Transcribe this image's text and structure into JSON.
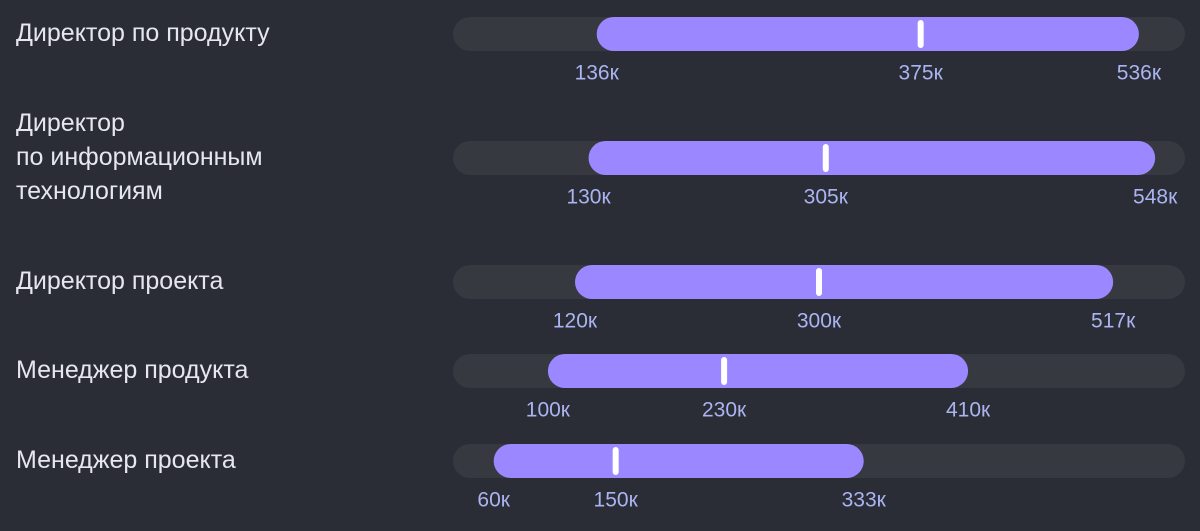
{
  "chart_data": {
    "type": "range",
    "categories": [
      [
        "Директор по продукту"
      ],
      [
        "Директор",
        "по информационным",
        "технологиям"
      ],
      [
        "Директор проекта"
      ],
      [
        "Менеджер продукта"
      ],
      [
        "Менеджер проекта"
      ]
    ],
    "low": {
      "values": [
        136,
        130,
        120,
        100,
        60
      ],
      "value_labels": [
        "136к",
        "130к",
        "120к",
        "100к",
        "60к"
      ]
    },
    "median": {
      "values": [
        375,
        305,
        300,
        230,
        150
      ],
      "value_labels": [
        "375к",
        "305к",
        "300к",
        "230к",
        "150к"
      ]
    },
    "high": {
      "values": [
        536,
        548,
        517,
        410,
        333
      ],
      "value_labels": [
        "536к",
        "548к",
        "517к",
        "410к",
        "333к"
      ]
    },
    "xlim": [
      30,
      570
    ],
    "color": "#9b87ff",
    "track_color": "#373941",
    "median_color": "#ffffff"
  }
}
